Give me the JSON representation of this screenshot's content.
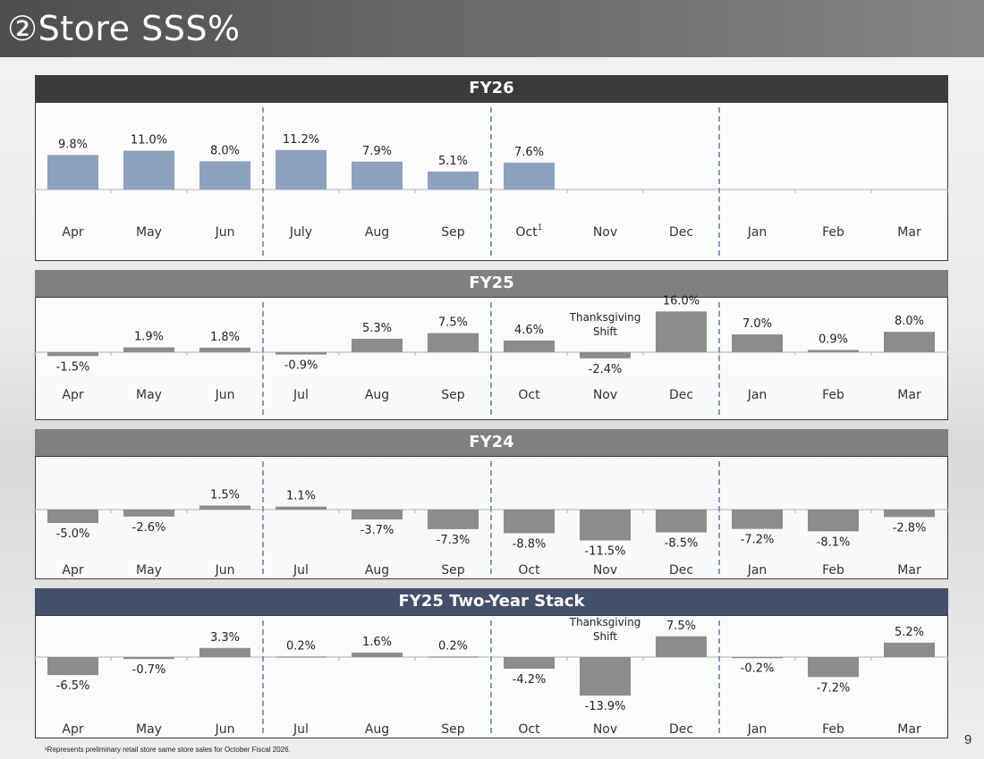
{
  "page": {
    "title": "②Store SSS%",
    "footnote": "¹Represents preliminary retail store same store sales for October Fiscal 2026.",
    "page_number": "9"
  },
  "colors": {
    "title_bar": "#5a5a5a",
    "fy26_header": "#3b3b3b",
    "fy25_header": "#808080",
    "fy24_header": "#808080",
    "stack_header": "#445069",
    "fy26_bar": "#8ea2bf",
    "gray_bar": "#8c8c8c",
    "divider": "#6d7fa8"
  },
  "chart_data": [
    {
      "id": "fy26",
      "type": "bar",
      "title": "FY26",
      "categories": [
        "Apr",
        "May",
        "Jun",
        "July",
        "Aug",
        "Sep",
        "Oct",
        "Nov",
        "Dec",
        "Jan",
        "Feb",
        "Mar"
      ],
      "category_superscripts": [
        "",
        "",
        "",
        "",
        "",
        "",
        "1",
        "",
        "",
        "",
        "",
        ""
      ],
      "values": [
        9.8,
        11.0,
        8.0,
        11.2,
        7.9,
        5.1,
        7.6,
        null,
        null,
        null,
        null,
        null
      ],
      "labels": [
        "9.8%",
        "11.0%",
        "8.0%",
        "11.2%",
        "7.9%",
        "5.1%",
        "7.6%",
        "",
        "",
        "",
        "",
        ""
      ],
      "annotations": [],
      "quarter_dividers_after": [
        3,
        6,
        9
      ],
      "ylim": [
        0,
        12
      ]
    },
    {
      "id": "fy25",
      "type": "bar",
      "title": "FY25",
      "categories": [
        "Apr",
        "May",
        "Jun",
        "Jul",
        "Aug",
        "Sep",
        "Oct",
        "Nov",
        "Dec",
        "Jan",
        "Feb",
        "Mar"
      ],
      "category_superscripts": [
        "",
        "",
        "",
        "",
        "",
        "",
        "",
        "",
        "",
        "",
        "",
        ""
      ],
      "values": [
        -1.5,
        1.9,
        1.8,
        -0.9,
        5.3,
        7.5,
        4.6,
        -2.4,
        16.0,
        7.0,
        0.9,
        8.0
      ],
      "labels": [
        "-1.5%",
        "1.9%",
        "1.8%",
        "-0.9%",
        "5.3%",
        "7.5%",
        "4.6%",
        "-2.4%",
        "16.0%",
        "7.0%",
        "0.9%",
        "8.0%"
      ],
      "annotations": [
        {
          "category_index": 7,
          "lines": [
            "Thanksgiving",
            "Shift"
          ]
        }
      ],
      "quarter_dividers_after": [
        3,
        6,
        9
      ],
      "ylim": [
        -4,
        16
      ]
    },
    {
      "id": "fy24",
      "type": "bar",
      "title": "FY24",
      "categories": [
        "Apr",
        "May",
        "Jun",
        "Jul",
        "Aug",
        "Sep",
        "Oct",
        "Nov",
        "Dec",
        "Jan",
        "Feb",
        "Mar"
      ],
      "category_superscripts": [
        "",
        "",
        "",
        "",
        "",
        "",
        "",
        "",
        "",
        "",
        "",
        ""
      ],
      "values": [
        -5.0,
        -2.6,
        1.5,
        1.1,
        -3.7,
        -7.3,
        -8.8,
        -11.5,
        -8.5,
        -7.2,
        -8.1,
        -2.8
      ],
      "labels": [
        "-5.0%",
        "-2.6%",
        "1.5%",
        "1.1%",
        "-3.7%",
        "-7.3%",
        "-8.8%",
        "-11.5%",
        "-8.5%",
        "-7.2%",
        "-8.1%",
        "-2.8%"
      ],
      "annotations": [],
      "quarter_dividers_after": [
        3,
        6,
        9
      ],
      "ylim": [
        -12,
        4
      ]
    },
    {
      "id": "fy25_stack",
      "type": "bar",
      "title": "FY25 Two-Year Stack",
      "categories": [
        "Apr",
        "May",
        "Jun",
        "Jul",
        "Aug",
        "Sep",
        "Oct",
        "Nov",
        "Dec",
        "Jan",
        "Feb",
        "Mar"
      ],
      "category_superscripts": [
        "",
        "",
        "",
        "",
        "",
        "",
        "",
        "",
        "",
        "",
        "",
        ""
      ],
      "values": [
        -6.5,
        -0.7,
        3.3,
        0.2,
        1.6,
        0.2,
        -4.2,
        -13.9,
        7.5,
        -0.2,
        -7.2,
        5.2
      ],
      "labels": [
        "-6.5%",
        "-0.7%",
        "3.3%",
        "0.2%",
        "1.6%",
        "0.2%",
        "-4.2%",
        "-13.9%",
        "7.5%",
        "-0.2%",
        "-7.2%",
        "5.2%"
      ],
      "annotations": [
        {
          "category_index": 7,
          "lines": [
            "Thanksgiving",
            "Shift"
          ]
        }
      ],
      "quarter_dividers_after": [
        3,
        6,
        9
      ],
      "ylim": [
        -14,
        8
      ]
    }
  ]
}
